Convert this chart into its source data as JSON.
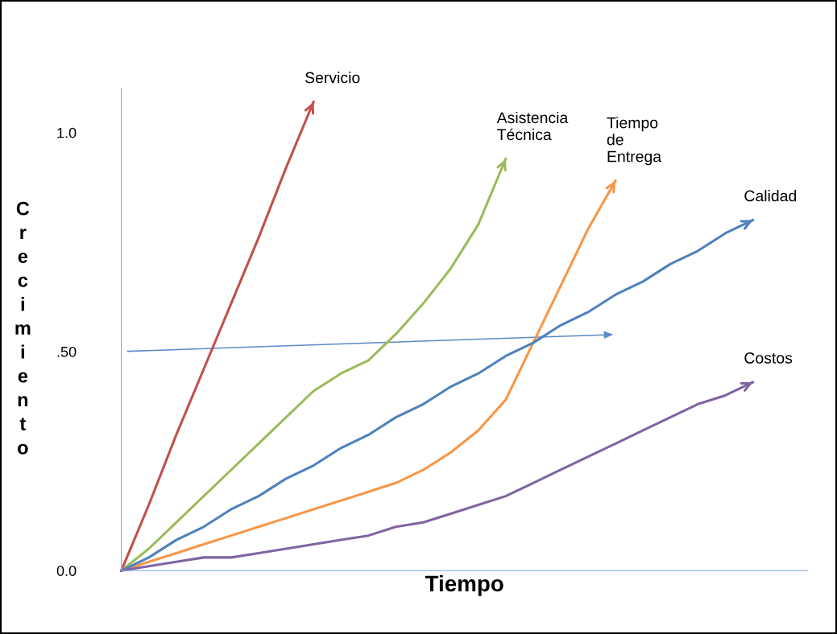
{
  "chart_data": {
    "type": "line",
    "xlabel": "Tiempo",
    "ylabel": "Crecimiento",
    "categories": [
      null,
      null,
      null,
      null,
      null,
      null,
      null,
      null,
      null,
      null,
      null,
      null,
      null,
      null,
      null,
      null,
      null,
      null,
      null,
      null,
      null,
      null,
      null,
      null,
      null,
      null
    ],
    "ylim": [
      0,
      1.1
    ],
    "yticks": [
      {
        "value": 0,
        "label": "0.0"
      },
      {
        "value": 0.5,
        "label": ".50"
      },
      {
        "value": 1,
        "label": "1.0"
      }
    ],
    "tick_labels": "y",
    "grid": false,
    "legend": false,
    "marker": "none",
    "series": [
      {
        "name": "Servicio",
        "color": "#c0504d",
        "values": [
          0,
          0.15,
          0.31,
          0.46,
          0.61,
          0.76,
          0.92,
          1.07,
          null,
          null,
          null,
          null,
          null,
          null,
          null,
          null,
          null,
          null,
          null,
          null,
          null,
          null,
          null,
          null,
          null,
          null
        ]
      },
      {
        "name": "Asistencia\nTécnica",
        "color": "#9bbb59",
        "values": [
          0,
          0.05,
          0.11,
          0.17,
          0.23,
          0.29,
          0.35,
          0.41,
          0.45,
          0.48,
          0.54,
          0.61,
          0.69,
          0.79,
          0.94,
          null,
          null,
          null,
          null,
          null,
          null,
          null,
          null,
          null,
          null,
          null
        ]
      },
      {
        "name": "Tiempo\nde\nEntrega",
        "color": "#f79646",
        "values": [
          0,
          0.02,
          0.04,
          0.06,
          0.08,
          0.1,
          0.12,
          0.14,
          0.16,
          0.18,
          0.2,
          0.23,
          0.27,
          0.32,
          0.39,
          0.52,
          0.65,
          0.78,
          0.89,
          null,
          null,
          null,
          null,
          null,
          null,
          null
        ]
      },
      {
        "name": "Calidad",
        "color": "#4f81bd",
        "values": [
          0,
          0.03,
          0.07,
          0.1,
          0.14,
          0.17,
          0.21,
          0.24,
          0.28,
          0.31,
          0.35,
          0.38,
          0.42,
          0.45,
          0.49,
          0.52,
          0.56,
          0.59,
          0.63,
          0.66,
          0.7,
          0.73,
          0.77,
          0.8,
          null,
          null
        ]
      },
      {
        "name": "Costos",
        "color": "#8064a2",
        "values": [
          0,
          0.01,
          0.02,
          0.03,
          0.03,
          0.04,
          0.05,
          0.06,
          0.07,
          0.08,
          0.1,
          0.11,
          0.13,
          0.15,
          0.17,
          0.2,
          0.23,
          0.26,
          0.29,
          0.32,
          0.35,
          0.38,
          0.4,
          0.43,
          null,
          null
        ]
      }
    ]
  }
}
